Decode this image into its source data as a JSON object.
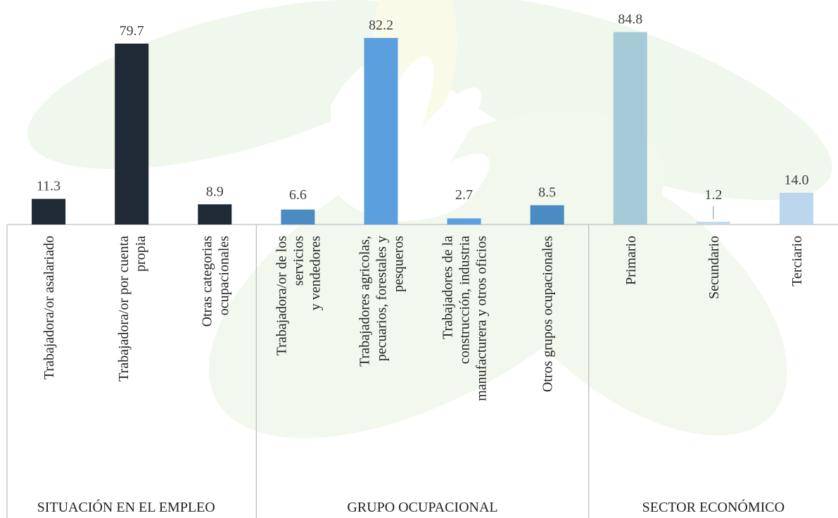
{
  "chart_data": {
    "type": "bar",
    "groups": [
      {
        "name": "SITUACIÓN EN EL EMPLEO",
        "categories": [
          "Trabajadora/or asalariado",
          "Trabajadora/or por cuenta\npropia",
          "Otras categorias\nocupacionales"
        ],
        "values": [
          11.3,
          79.7,
          8.9
        ],
        "colors": [
          "#1f2a36",
          "#1f2a36",
          "#1f2a36"
        ]
      },
      {
        "name": "GRUPO OCUPACIONAL",
        "categories": [
          "Trabajadora/or de los\nservicios\ny vendedores",
          "Trabajadores agricolas,\npecuarios, forestales y\npesqueros",
          "Trabajadores de la\nconstrucción, industria\nmanufacturera y otros oficios",
          "Otros grupos ocupacionales"
        ],
        "values": [
          6.6,
          82.2,
          2.7,
          8.5
        ],
        "colors": [
          "#4a8bc4",
          "#5b9fdf",
          "#5b9fdf",
          "#4a8bc4"
        ]
      },
      {
        "name": "SECTOR ECONÓMICO",
        "categories": [
          "Primario",
          "Secundario",
          "Terciario"
        ],
        "values": [
          84.8,
          1.2,
          14.0
        ],
        "value_labels": [
          "84.8",
          "1.2",
          "14.0"
        ],
        "colors": [
          "#a6cad8",
          "#c3d9ea",
          "#bcd6ee"
        ]
      }
    ]
  }
}
